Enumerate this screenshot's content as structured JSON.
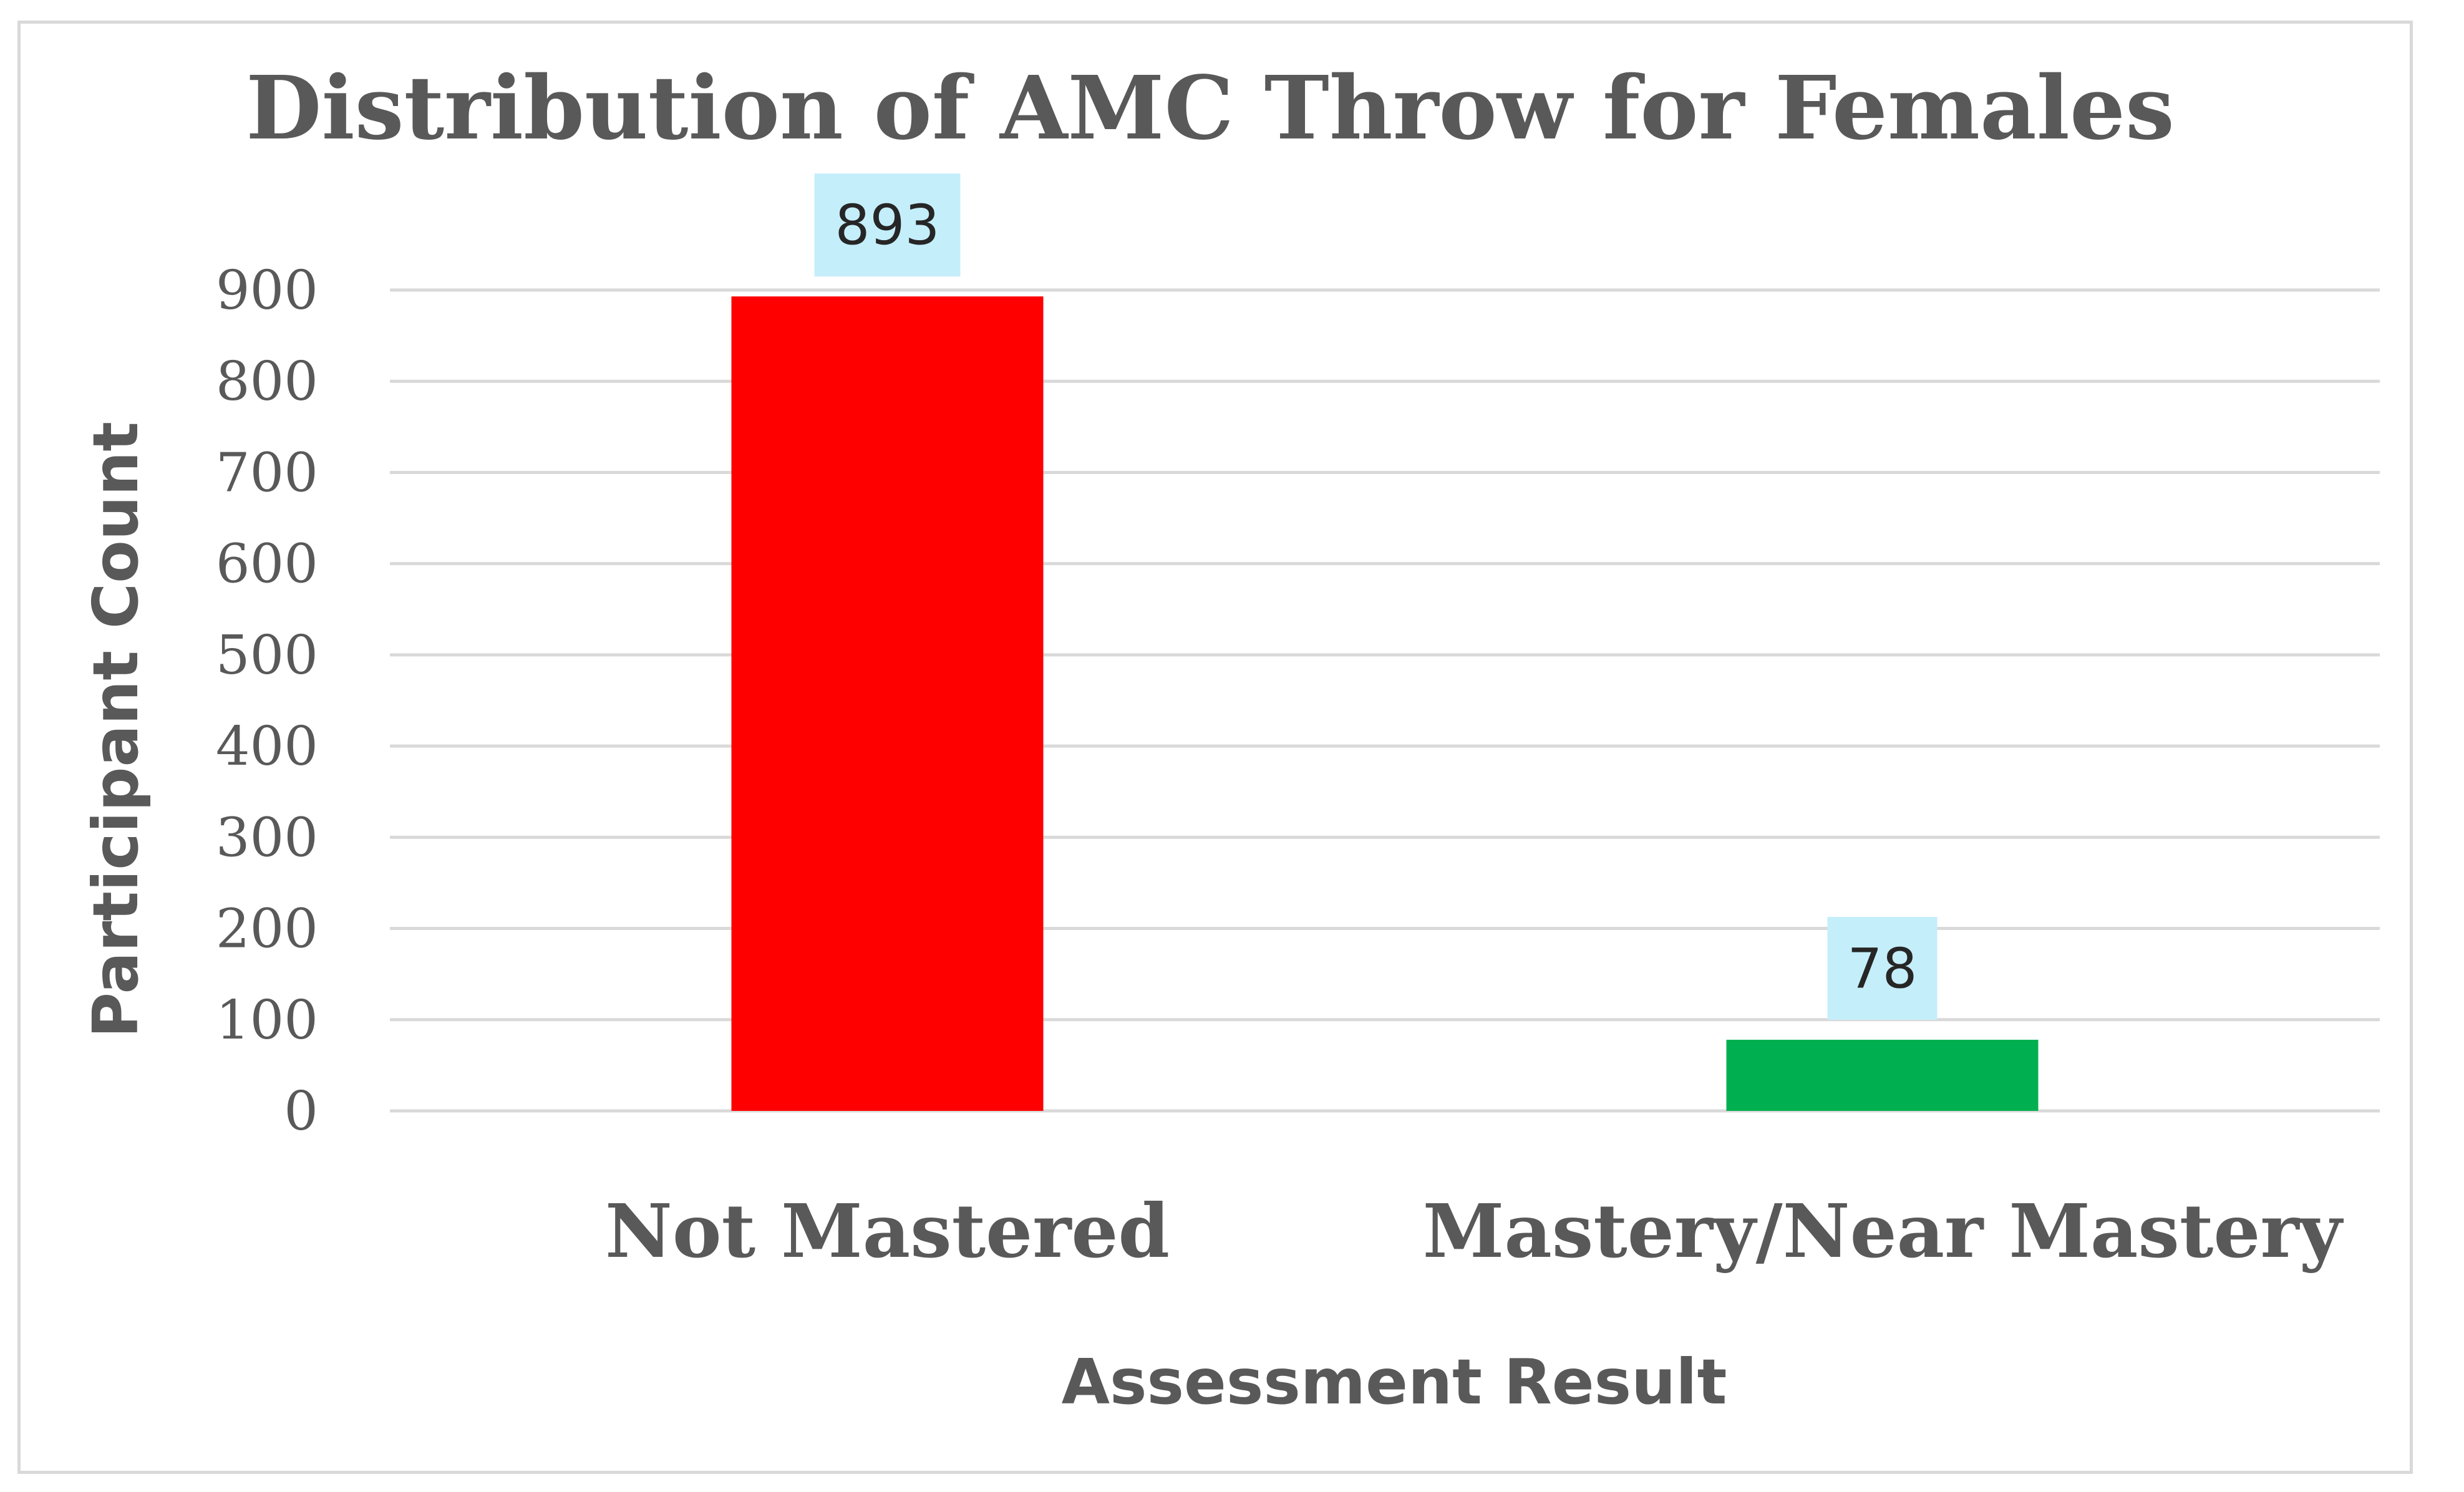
{
  "chart_data": {
    "type": "bar",
    "title": "Distribution of AMC Throw for Females",
    "xlabel": "Assessment Result",
    "ylabel": "Participant Count",
    "categories": [
      "Not Mastered",
      "Mastery/Near Mastery"
    ],
    "values": [
      893,
      78
    ],
    "data_labels": [
      "893",
      "78"
    ],
    "bar_colors": [
      "#ff0000",
      "#00b050"
    ],
    "data_label_background": "#c5eefb",
    "gridline_color": "#d9d9d9",
    "text_color": "#595959",
    "ylim": [
      0,
      900
    ],
    "yticks": [
      0,
      100,
      200,
      300,
      400,
      500,
      600,
      700,
      800,
      900
    ],
    "grid": true,
    "legend": "none"
  }
}
